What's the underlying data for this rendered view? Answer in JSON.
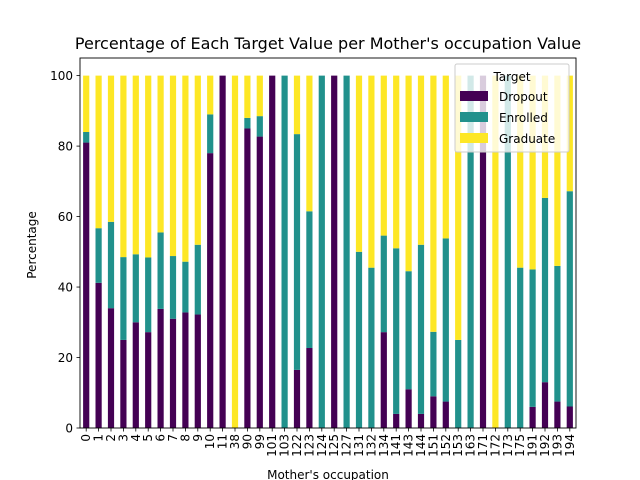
{
  "chart_data": {
    "type": "bar",
    "stacked": true,
    "title": "Percentage of Each Target Value per Mother's occupation Value",
    "xlabel": "Mother's occupation",
    "ylabel": "Percentage",
    "ylim": [
      0,
      105
    ],
    "yticks": [
      0,
      20,
      40,
      60,
      80,
      100
    ],
    "grid": false,
    "legend": {
      "title": "Target",
      "placement": "top-right"
    },
    "categories": [
      "0",
      "1",
      "2",
      "3",
      "4",
      "5",
      "6",
      "7",
      "8",
      "9",
      "10",
      "11",
      "38",
      "90",
      "99",
      "101",
      "103",
      "122",
      "123",
      "124",
      "125",
      "127",
      "131",
      "132",
      "134",
      "141",
      "143",
      "144",
      "151",
      "152",
      "153",
      "163",
      "171",
      "172",
      "173",
      "175",
      "191",
      "192",
      "193",
      "194"
    ],
    "series": [
      {
        "name": "Dropout",
        "color": "#440154",
        "values": [
          81,
          41.2,
          34,
          25,
          30,
          27.2,
          33.8,
          31,
          32.8,
          32.2,
          78,
          100,
          0,
          85,
          82.7,
          100,
          0,
          16.5,
          22.7,
          0,
          100,
          0,
          0,
          0,
          27.2,
          4,
          11,
          4,
          9,
          7.5,
          0,
          0,
          100,
          0,
          0,
          0,
          6,
          13,
          7.5,
          6.1
        ]
      },
      {
        "name": "Enrolled",
        "color": "#21918c",
        "values": [
          3,
          15.5,
          24.5,
          23.5,
          19.3,
          21.2,
          21.7,
          17.8,
          14.4,
          19.8,
          11,
          0,
          0,
          3,
          5.8,
          0,
          100,
          66.9,
          38.8,
          100,
          0,
          100,
          50,
          45.5,
          27.4,
          47,
          33.5,
          48,
          18.3,
          46.3,
          25,
          100,
          0,
          0,
          100,
          45.5,
          39,
          52.3,
          38.5,
          61.1
        ]
      },
      {
        "name": "Graduate",
        "color": "#fde725",
        "values": [
          16,
          43.3,
          41.5,
          51.5,
          50.7,
          51.6,
          44.5,
          51.2,
          52.8,
          48,
          11,
          0,
          100,
          12,
          11.5,
          0,
          0,
          16.6,
          38.5,
          0,
          0,
          0,
          50,
          54.5,
          45.4,
          49,
          55.5,
          48,
          72.7,
          46.2,
          75,
          0,
          0,
          100,
          0,
          54.5,
          55,
          34.7,
          54,
          32.8
        ]
      }
    ]
  }
}
